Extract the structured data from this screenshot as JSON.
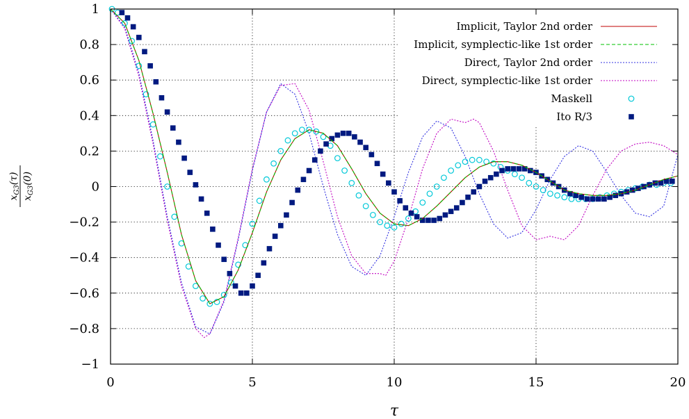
{
  "chart_data": {
    "type": "line",
    "xlabel": "τ",
    "ylabel": {
      "numerator": "x",
      "numerator_sub": "G3",
      "numerator_arg": "(τ)",
      "denominator": "x",
      "denominator_sub": "G3",
      "denominator_arg": "(0)"
    },
    "xlim": [
      0,
      20
    ],
    "ylim": [
      -1,
      1
    ],
    "xticks": [
      0,
      5,
      10,
      15,
      20
    ],
    "xtick_labels": [
      "0",
      "5",
      "10",
      "15",
      "20"
    ],
    "yticks": [
      -1,
      -0.8,
      -0.6,
      -0.4,
      -0.2,
      0,
      0.2,
      0.4,
      0.6,
      0.8,
      1
    ],
    "ytick_labels": [
      "−1",
      "−0.8",
      "−0.6",
      "−0.4",
      "−0.2",
      "0",
      "0.2",
      "0.4",
      "0.6",
      "0.8",
      "1"
    ],
    "grid": true,
    "legend_position": "top-right",
    "series": [
      {
        "name": "Implicit, Taylor 2nd order",
        "color": "#c00000",
        "style": "solid",
        "x": [
          0,
          0.5,
          1,
          1.5,
          2,
          2.5,
          3,
          3.5,
          4,
          4.5,
          5,
          5.5,
          6,
          6.5,
          7,
          7.5,
          8,
          8.5,
          9,
          9.5,
          10,
          10.5,
          11,
          11.5,
          12,
          12.5,
          13,
          13.5,
          14,
          14.5,
          15,
          15.5,
          16,
          16.5,
          17,
          17.5,
          18,
          18.5,
          19,
          19.5,
          20
        ],
        "y": [
          1.0,
          0.92,
          0.71,
          0.41,
          0.08,
          -0.27,
          -0.53,
          -0.66,
          -0.62,
          -0.47,
          -0.26,
          -0.03,
          0.15,
          0.27,
          0.32,
          0.3,
          0.23,
          0.1,
          -0.04,
          -0.15,
          -0.21,
          -0.22,
          -0.18,
          -0.11,
          -0.03,
          0.05,
          0.11,
          0.14,
          0.14,
          0.12,
          0.08,
          0.03,
          -0.02,
          -0.04,
          -0.05,
          -0.05,
          -0.04,
          -0.02,
          0.01,
          0.04,
          0.06
        ]
      },
      {
        "name": "Implicit, symplectic-like 1st order",
        "color": "#00c000",
        "style": "dashed",
        "x": [
          0,
          0.5,
          1,
          1.5,
          2,
          2.5,
          3,
          3.5,
          4,
          4.5,
          5,
          5.5,
          6,
          6.5,
          7,
          7.5,
          8,
          8.5,
          9,
          9.5,
          10,
          10.5,
          11,
          11.5,
          12,
          12.5,
          13,
          13.5,
          14,
          14.5,
          15,
          15.5,
          16,
          16.5,
          17,
          17.5,
          18,
          18.5,
          19,
          19.5,
          20
        ],
        "y": [
          1.0,
          0.92,
          0.71,
          0.41,
          0.08,
          -0.27,
          -0.53,
          -0.66,
          -0.62,
          -0.47,
          -0.26,
          -0.03,
          0.15,
          0.27,
          0.32,
          0.3,
          0.23,
          0.1,
          -0.04,
          -0.15,
          -0.21,
          -0.22,
          -0.18,
          -0.11,
          -0.03,
          0.05,
          0.11,
          0.14,
          0.14,
          0.12,
          0.08,
          0.03,
          -0.02,
          -0.04,
          -0.05,
          -0.05,
          -0.04,
          -0.02,
          0.01,
          0.04,
          0.06
        ]
      },
      {
        "name": "Direct, Taylor 2nd order",
        "color": "#3030e0",
        "style": "dotted",
        "x": [
          0,
          0.5,
          1,
          1.5,
          2,
          2.5,
          3,
          3.5,
          4,
          4.5,
          5,
          5.5,
          6,
          6.5,
          7,
          7.5,
          8,
          8.5,
          9,
          9.5,
          10,
          10.5,
          11,
          11.5,
          12,
          12.5,
          13,
          13.5,
          14,
          14.5,
          15,
          15.5,
          16,
          16.5,
          17,
          17.5,
          18,
          18.5,
          19,
          19.5,
          20
        ],
        "y": [
          1.0,
          0.9,
          0.64,
          0.26,
          -0.17,
          -0.54,
          -0.79,
          -0.83,
          -0.65,
          -0.3,
          0.09,
          0.42,
          0.58,
          0.52,
          0.3,
          0.0,
          -0.27,
          -0.45,
          -0.5,
          -0.39,
          -0.17,
          0.08,
          0.28,
          0.37,
          0.33,
          0.17,
          -0.04,
          -0.21,
          -0.29,
          -0.26,
          -0.13,
          0.04,
          0.17,
          0.23,
          0.2,
          0.08,
          -0.05,
          -0.15,
          -0.17,
          -0.11,
          0.18
        ]
      },
      {
        "name": "Direct, symplectic-like 1st order",
        "color": "#c000c0",
        "style": "dotted",
        "x": [
          0,
          0.5,
          1,
          1.5,
          2,
          2.5,
          3,
          3.3,
          3.5,
          4,
          4.5,
          5,
          5.5,
          6,
          6.5,
          7,
          7.5,
          8,
          8.5,
          9,
          9.5,
          9.7,
          10,
          10.5,
          11,
          11.5,
          12,
          12.5,
          12.8,
          13,
          13.5,
          14,
          14.5,
          15,
          15.5,
          16,
          16.5,
          17,
          17.5,
          18,
          18.5,
          19,
          19.5,
          20
        ],
        "y": [
          1.0,
          0.89,
          0.62,
          0.24,
          -0.19,
          -0.56,
          -0.8,
          -0.85,
          -0.83,
          -0.64,
          -0.29,
          0.1,
          0.42,
          0.57,
          0.58,
          0.43,
          0.14,
          -0.17,
          -0.39,
          -0.49,
          -0.49,
          -0.5,
          -0.42,
          -0.18,
          0.1,
          0.3,
          0.38,
          0.36,
          0.38,
          0.36,
          0.2,
          -0.02,
          -0.22,
          -0.3,
          -0.28,
          -0.3,
          -0.22,
          -0.05,
          0.1,
          0.2,
          0.24,
          0.25,
          0.23,
          0.18
        ]
      },
      {
        "name": "Maskell",
        "color": "#00c8d8",
        "marker": "open-circle",
        "x": [
          0.05,
          0.25,
          0.5,
          0.75,
          1,
          1.25,
          1.5,
          1.75,
          2,
          2.25,
          2.5,
          2.75,
          3,
          3.25,
          3.5,
          3.75,
          4,
          4.25,
          4.5,
          4.75,
          5,
          5.25,
          5.5,
          5.75,
          6,
          6.25,
          6.5,
          6.75,
          7,
          7.25,
          7.5,
          7.75,
          8,
          8.25,
          8.5,
          8.75,
          9,
          9.25,
          9.5,
          9.75,
          10,
          10.25,
          10.5,
          10.75,
          11,
          11.25,
          11.5,
          11.75,
          12,
          12.25,
          12.5,
          12.75,
          13,
          13.25,
          13.5,
          13.75,
          14,
          14.25,
          14.5,
          14.75,
          15,
          15.25,
          15.5,
          15.75,
          16,
          16.25,
          16.5,
          16.75,
          17,
          17.25,
          17.5,
          17.75,
          18,
          18.25,
          18.5,
          18.75,
          19,
          19.25,
          19.5,
          19.75
        ],
        "y": [
          1.0,
          0.98,
          0.92,
          0.82,
          0.68,
          0.52,
          0.35,
          0.17,
          0.0,
          -0.17,
          -0.32,
          -0.45,
          -0.56,
          -0.63,
          -0.66,
          -0.65,
          -0.61,
          -0.54,
          -0.44,
          -0.33,
          -0.21,
          -0.08,
          0.04,
          0.13,
          0.2,
          0.26,
          0.3,
          0.32,
          0.32,
          0.31,
          0.28,
          0.23,
          0.16,
          0.09,
          0.02,
          -0.05,
          -0.11,
          -0.16,
          -0.2,
          -0.22,
          -0.23,
          -0.21,
          -0.18,
          -0.14,
          -0.09,
          -0.04,
          0.0,
          0.05,
          0.09,
          0.12,
          0.14,
          0.15,
          0.15,
          0.14,
          0.13,
          0.11,
          0.09,
          0.07,
          0.05,
          0.02,
          0.0,
          -0.02,
          -0.04,
          -0.05,
          -0.06,
          -0.07,
          -0.07,
          -0.07,
          -0.07,
          -0.06,
          -0.05,
          -0.04,
          -0.03,
          -0.02,
          -0.01,
          0.0,
          0.01,
          0.01,
          0.02,
          0.02
        ]
      },
      {
        "name": "Ito R/3",
        "color": "#001a80",
        "marker": "filled-square",
        "x": [
          0.4,
          0.6,
          0.8,
          1.0,
          1.2,
          1.4,
          1.6,
          1.8,
          2.0,
          2.2,
          2.4,
          2.6,
          2.8,
          3.0,
          3.2,
          3.4,
          3.6,
          3.8,
          4.0,
          4.2,
          4.4,
          4.6,
          4.8,
          5.0,
          5.2,
          5.4,
          5.6,
          5.8,
          6.0,
          6.2,
          6.4,
          6.6,
          6.8,
          7.0,
          7.2,
          7.4,
          7.6,
          7.8,
          8.0,
          8.2,
          8.4,
          8.6,
          8.8,
          9.0,
          9.2,
          9.4,
          9.6,
          9.8,
          10.0,
          10.2,
          10.4,
          10.6,
          10.8,
          11.0,
          11.2,
          11.4,
          11.6,
          11.8,
          12.0,
          12.2,
          12.4,
          12.6,
          12.8,
          13.0,
          13.2,
          13.4,
          13.6,
          13.8,
          14.0,
          14.2,
          14.4,
          14.6,
          14.8,
          15.0,
          15.2,
          15.4,
          15.6,
          15.8,
          16.0,
          16.2,
          16.4,
          16.6,
          16.8,
          17.0,
          17.2,
          17.4,
          17.6,
          17.8,
          18.0,
          18.2,
          18.4,
          18.6,
          18.8,
          19.0,
          19.2,
          19.4,
          19.6,
          19.8
        ],
        "y": [
          0.98,
          0.95,
          0.9,
          0.84,
          0.76,
          0.68,
          0.59,
          0.5,
          0.42,
          0.33,
          0.25,
          0.16,
          0.08,
          0.01,
          -0.07,
          -0.15,
          -0.24,
          -0.33,
          -0.41,
          -0.49,
          -0.56,
          -0.6,
          -0.6,
          -0.56,
          -0.5,
          -0.43,
          -0.35,
          -0.28,
          -0.22,
          -0.16,
          -0.09,
          -0.02,
          0.04,
          0.09,
          0.15,
          0.2,
          0.24,
          0.27,
          0.29,
          0.3,
          0.3,
          0.28,
          0.25,
          0.22,
          0.18,
          0.13,
          0.07,
          0.02,
          -0.03,
          -0.08,
          -0.12,
          -0.15,
          -0.17,
          -0.19,
          -0.19,
          -0.19,
          -0.18,
          -0.16,
          -0.14,
          -0.12,
          -0.09,
          -0.06,
          -0.03,
          0.0,
          0.03,
          0.05,
          0.07,
          0.09,
          0.1,
          0.1,
          0.1,
          0.1,
          0.09,
          0.08,
          0.06,
          0.04,
          0.02,
          0.0,
          -0.02,
          -0.04,
          -0.05,
          -0.06,
          -0.07,
          -0.07,
          -0.07,
          -0.07,
          -0.06,
          -0.05,
          -0.04,
          -0.03,
          -0.02,
          -0.01,
          0.0,
          0.01,
          0.02,
          0.02,
          0.03,
          0.03
        ]
      }
    ]
  }
}
